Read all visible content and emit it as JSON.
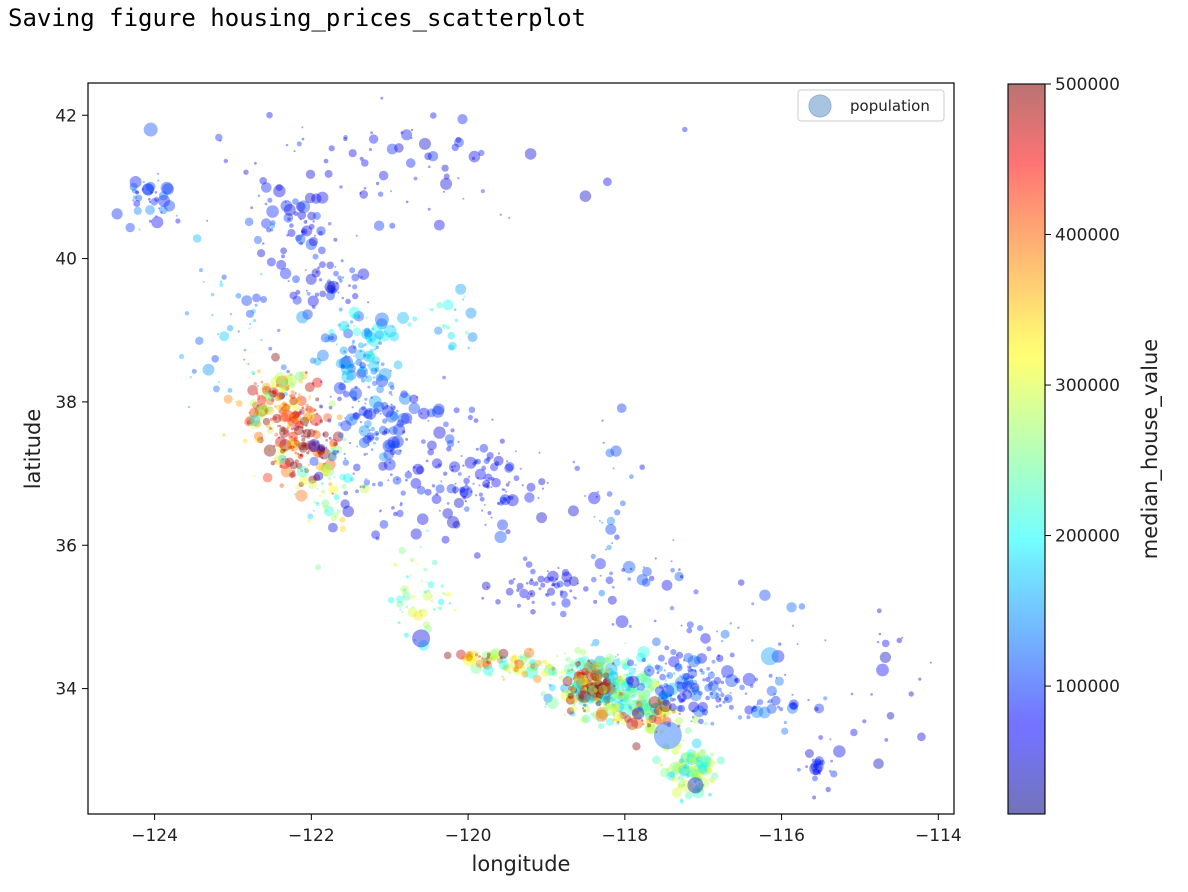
{
  "console": {
    "output_line": "Saving figure housing_prices_scatterplot"
  },
  "chart_data": {
    "type": "scatter",
    "xlabel": "longitude",
    "ylabel": "latitude",
    "xlim": [
      -124.85,
      -113.8
    ],
    "ylim": [
      32.25,
      42.45
    ],
    "x_ticks": [
      -124,
      -122,
      -120,
      -118,
      -116,
      -114
    ],
    "y_ticks": [
      34,
      36,
      38,
      40,
      42
    ],
    "x_tick_labels": [
      "−124",
      "−122",
      "−120",
      "−118",
      "−116",
      "−114"
    ],
    "y_tick_labels": [
      "34",
      "36",
      "38",
      "40",
      "42"
    ],
    "grid": false,
    "legend": {
      "placement": "top-right",
      "entries": [
        "population"
      ],
      "marker_color": "#a9c4e0"
    },
    "colorbar": {
      "label": "median_house_value",
      "range": [
        14999,
        500001
      ],
      "ticks": [
        100000,
        200000,
        300000,
        400000,
        500000
      ],
      "tick_labels": [
        "100000",
        "200000",
        "300000",
        "400000",
        "500000"
      ],
      "colormap": "jet"
    },
    "point_alpha": 0.4,
    "clusters": [
      {
        "lon": -122.3,
        "lat": 37.75,
        "spread": [
          0.25,
          0.35
        ],
        "n": 140,
        "value": 420000
      },
      {
        "lon": -122.05,
        "lat": 37.35,
        "spread": [
          0.2,
          0.25
        ],
        "n": 90,
        "value": 470000
      },
      {
        "lon": -122.55,
        "lat": 38.05,
        "spread": [
          0.25,
          0.2
        ],
        "n": 70,
        "value": 330000
      },
      {
        "lon": -121.8,
        "lat": 36.9,
        "spread": [
          0.2,
          0.3
        ],
        "n": 50,
        "value": 270000
      },
      {
        "lon": -121.4,
        "lat": 38.55,
        "spread": [
          0.25,
          0.3
        ],
        "n": 90,
        "value": 130000
      },
      {
        "lon": -121.3,
        "lat": 37.8,
        "spread": [
          0.3,
          0.3
        ],
        "n": 80,
        "value": 110000
      },
      {
        "lon": -120.8,
        "lat": 37.2,
        "spread": [
          0.6,
          0.5
        ],
        "n": 120,
        "value": 85000
      },
      {
        "lon": -119.7,
        "lat": 36.8,
        "spread": [
          0.4,
          0.3
        ],
        "n": 90,
        "value": 75000
      },
      {
        "lon": -119.1,
        "lat": 35.4,
        "spread": [
          0.3,
          0.15
        ],
        "n": 55,
        "value": 70000
      },
      {
        "lon": -118.25,
        "lat": 34.05,
        "spread": [
          0.3,
          0.2
        ],
        "n": 240,
        "value": 210000
      },
      {
        "lon": -118.45,
        "lat": 34.05,
        "spread": [
          0.15,
          0.15
        ],
        "n": 110,
        "value": 470000
      },
      {
        "lon": -118.0,
        "lat": 33.8,
        "spread": [
          0.3,
          0.15
        ],
        "n": 120,
        "value": 240000
      },
      {
        "lon": -117.7,
        "lat": 33.6,
        "spread": [
          0.25,
          0.15
        ],
        "n": 60,
        "value": 390000
      },
      {
        "lon": -117.2,
        "lat": 34.05,
        "spread": [
          0.3,
          0.2
        ],
        "n": 110,
        "value": 100000
      },
      {
        "lon": -117.15,
        "lat": 32.85,
        "spread": [
          0.15,
          0.2
        ],
        "n": 110,
        "value": 240000
      },
      {
        "lon": -119.3,
        "lat": 34.3,
        "spread": [
          0.3,
          0.1
        ],
        "n": 70,
        "value": 300000
      },
      {
        "lon": -119.8,
        "lat": 34.45,
        "spread": [
          0.15,
          0.05
        ],
        "n": 30,
        "value": 390000
      },
      {
        "lon": -120.6,
        "lat": 35.3,
        "spread": [
          0.2,
          0.35
        ],
        "n": 50,
        "value": 250000
      },
      {
        "lon": -122.3,
        "lat": 40.5,
        "spread": [
          0.25,
          0.2
        ],
        "n": 50,
        "value": 85000
      },
      {
        "lon": -121.8,
        "lat": 39.7,
        "spread": [
          0.3,
          0.2
        ],
        "n": 50,
        "value": 80000
      },
      {
        "lon": -124.05,
        "lat": 40.8,
        "spread": [
          0.15,
          0.2
        ],
        "n": 40,
        "value": 105000
      },
      {
        "lon": -122.9,
        "lat": 39.1,
        "spread": [
          0.5,
          0.5
        ],
        "n": 50,
        "value": 140000
      },
      {
        "lon": -121.2,
        "lat": 41.2,
        "spread": [
          1.2,
          0.5
        ],
        "n": 80,
        "value": 75000
      },
      {
        "lon": -116.3,
        "lat": 33.8,
        "spread": [
          0.4,
          0.25
        ],
        "n": 50,
        "value": 100000
      },
      {
        "lon": -117.0,
        "lat": 34.8,
        "spread": [
          0.6,
          0.3
        ],
        "n": 40,
        "value": 90000
      },
      {
        "lon": -115.5,
        "lat": 32.9,
        "spread": [
          0.1,
          0.2
        ],
        "n": 25,
        "value": 75000
      },
      {
        "lon": -121.3,
        "lat": 38.9,
        "spread": [
          0.2,
          0.2
        ],
        "n": 40,
        "value": 170000
      },
      {
        "lon": -120.2,
        "lat": 39.1,
        "spread": [
          0.2,
          0.3
        ],
        "n": 20,
        "value": 180000
      },
      {
        "lon": -118.2,
        "lat": 36.5,
        "spread": [
          0.2,
          0.7
        ],
        "n": 25,
        "value": 110000
      },
      {
        "lon": -117.9,
        "lat": 35.6,
        "spread": [
          0.5,
          0.2
        ],
        "n": 25,
        "value": 85000
      },
      {
        "lon": -114.6,
        "lat": 34.0,
        "spread": [
          0.3,
          0.6
        ],
        "n": 20,
        "value": 60000
      }
    ],
    "large_points": [
      {
        "lon": -117.45,
        "lat": 33.35,
        "r": 14,
        "value": 120000
      },
      {
        "lon": -116.15,
        "lat": 34.45,
        "r": 9,
        "value": 150000
      },
      {
        "lon": -120.6,
        "lat": 34.7,
        "r": 9,
        "value": 60000
      },
      {
        "lon": -120.55,
        "lat": 41.6,
        "r": 6,
        "value": 50000
      },
      {
        "lon": -124.05,
        "lat": 41.8,
        "r": 7,
        "value": 110000
      },
      {
        "lon": -121.1,
        "lat": 39.15,
        "r": 7,
        "value": 120000
      },
      {
        "lon": -117.1,
        "lat": 32.65,
        "r": 8,
        "value": 60000
      }
    ]
  }
}
